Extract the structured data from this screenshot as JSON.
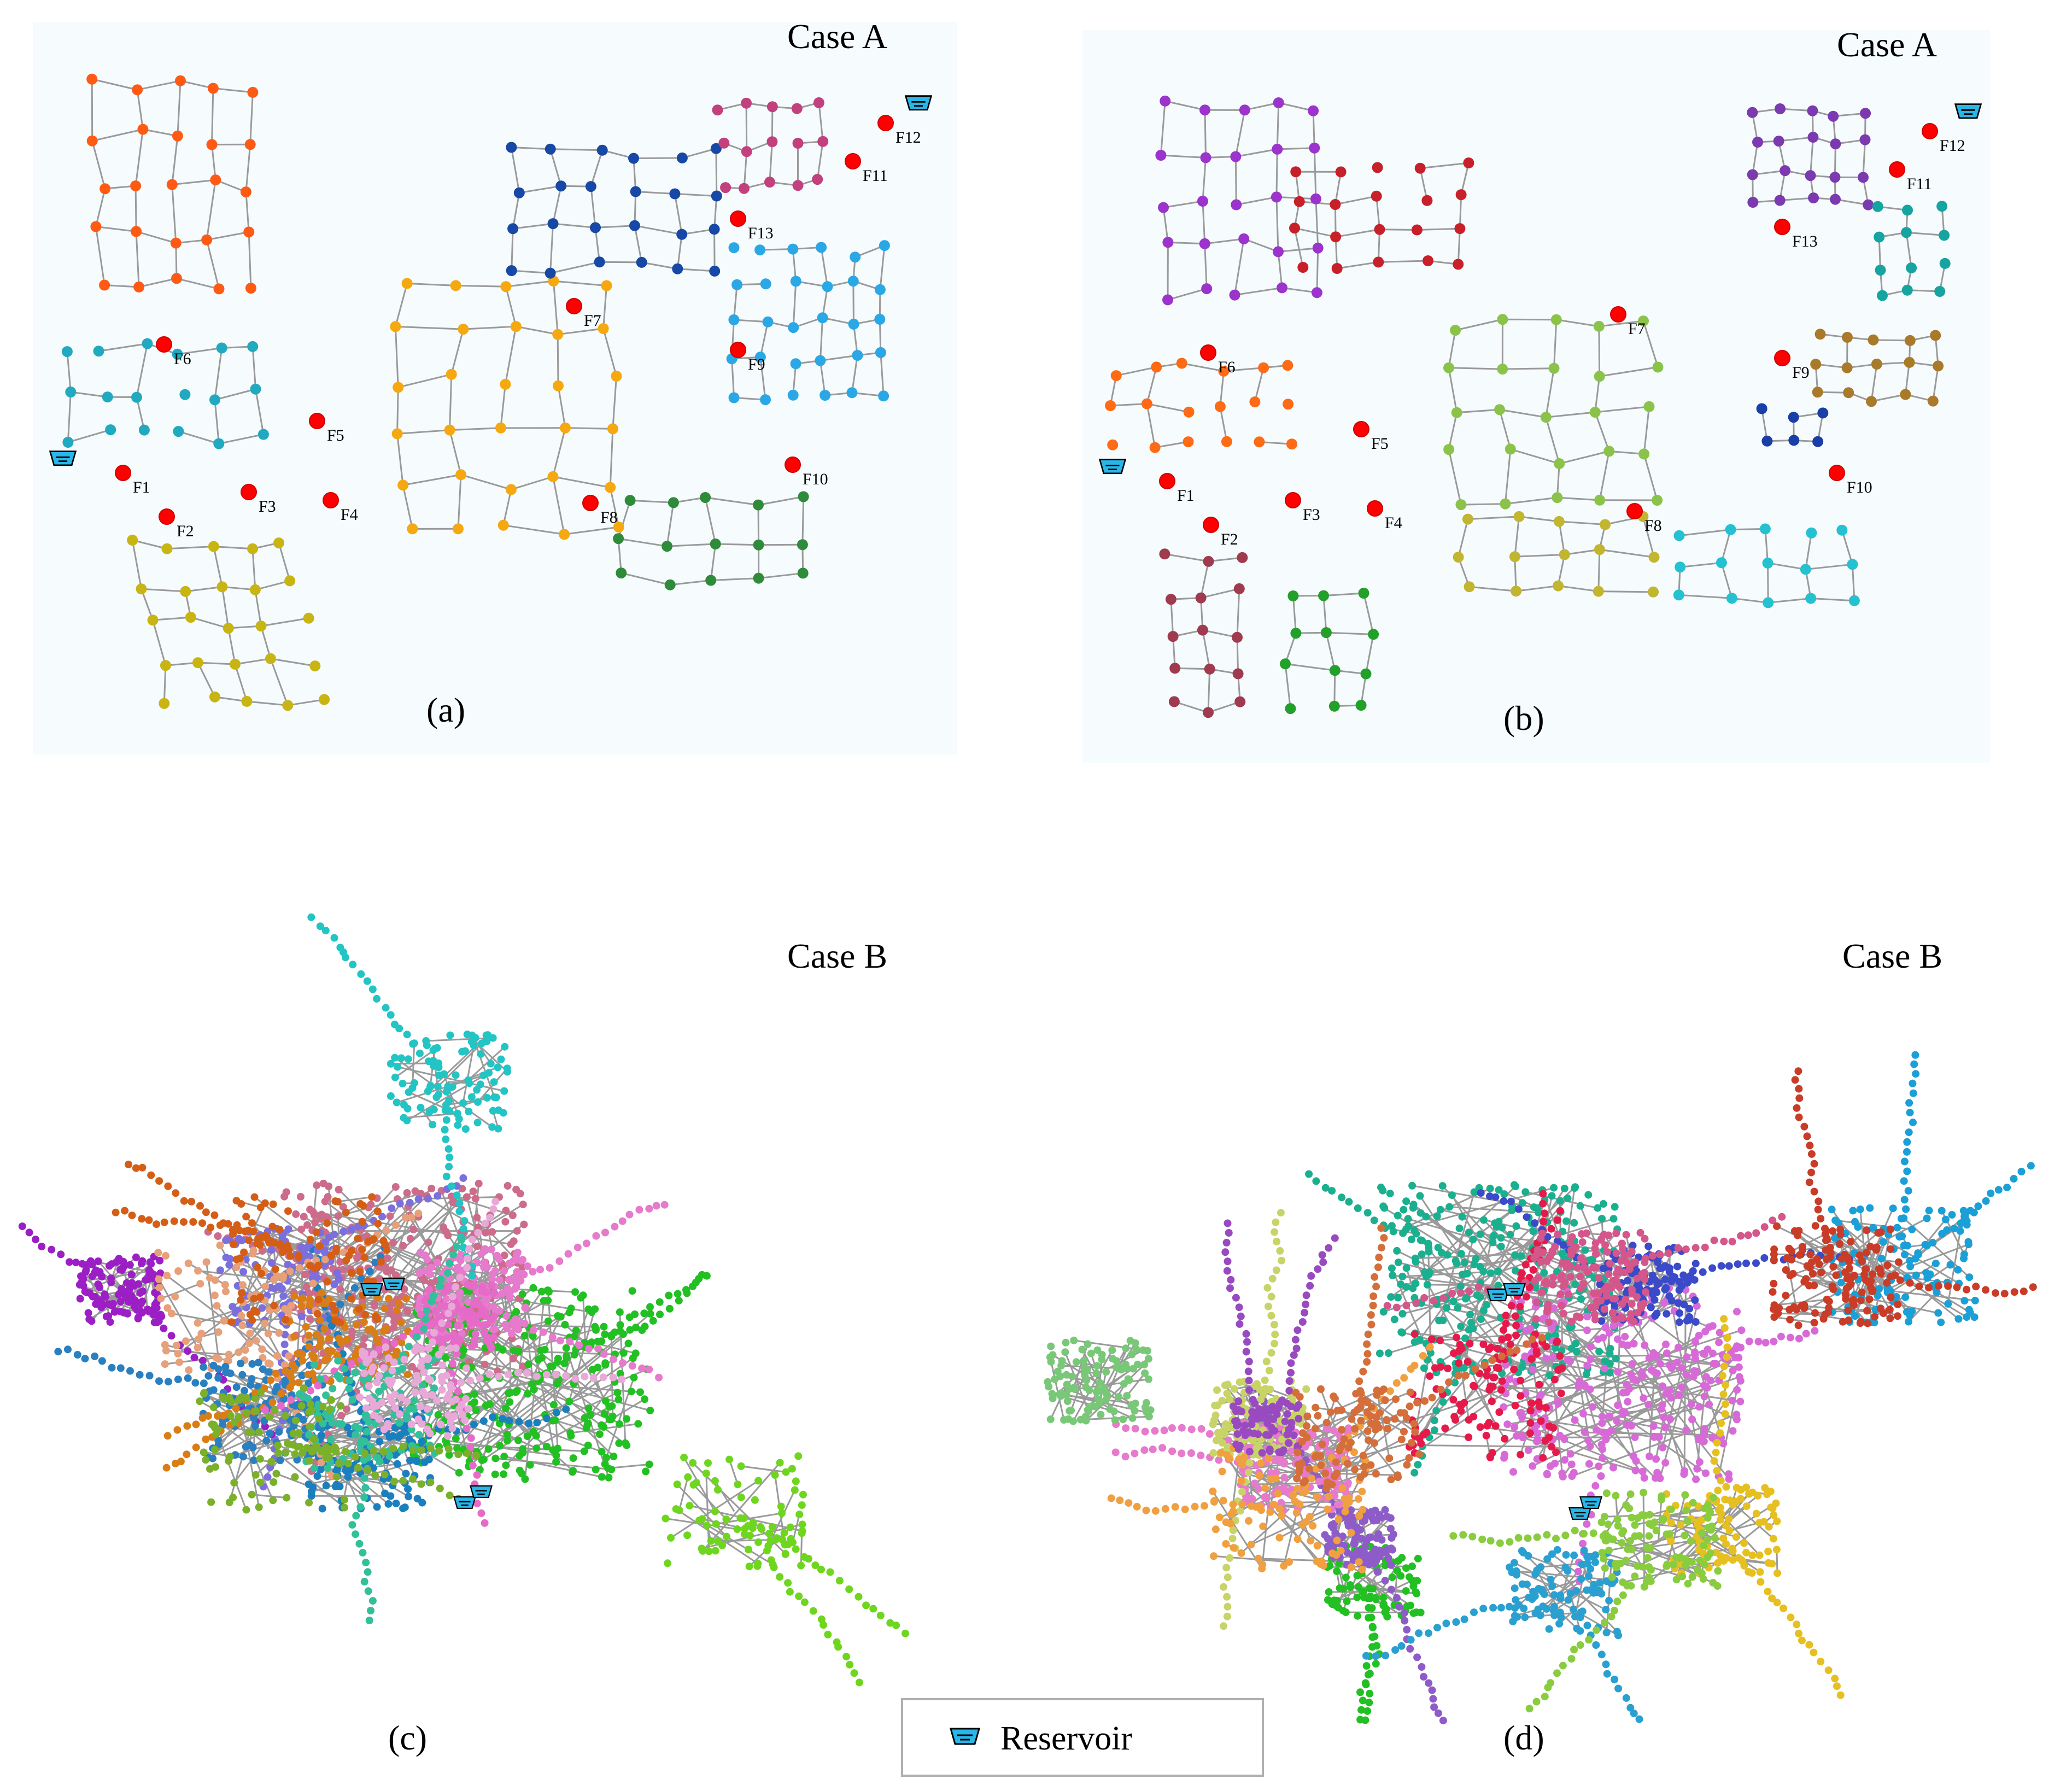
{
  "panels": [
    {
      "id": "a",
      "title": "Case A",
      "label": "(a)"
    },
    {
      "id": "b",
      "title": "Case A",
      "label": "(b)"
    },
    {
      "id": "c",
      "title": "Case B",
      "label": "(c)"
    },
    {
      "id": "d",
      "title": "Case B",
      "label": "(d)"
    }
  ],
  "fault_labels": [
    "F1",
    "F2",
    "F3",
    "F4",
    "F5",
    "F6",
    "F7",
    "F8",
    "F9",
    "F10",
    "F11",
    "F12",
    "F13"
  ],
  "legend": {
    "reservoir_label": "Reservoir"
  },
  "icons": {
    "reservoir": "reservoir-icon",
    "fault": "fault-node-icon"
  },
  "colors": {
    "edge": "#9a9a9a",
    "fault": "#ff0000",
    "reservoir": "#29b6e8",
    "a_clusters": [
      "#ff5a14",
      "#21a9c0",
      "#f5a810",
      "#1748a6",
      "#c2407e",
      "#2aa8e6",
      "#2e8b3a",
      "#c8b514"
    ],
    "b_clusters": [
      "#9c33cc",
      "#ff6a14",
      "#c8202a",
      "#8bc34a",
      "#c2b630",
      "#a03a4f",
      "#22a02a",
      "#24c1d1",
      "#7b3ab0",
      "#a87a2a",
      "#1a3ea8",
      "#16a4a0"
    ],
    "c_clusters": [
      "#cc6b8a",
      "#22c022",
      "#e67acc",
      "#1a7fbf",
      "#7a6fdc",
      "#23c4c4",
      "#9b1fc4",
      "#6fd61f",
      "#e6a07a",
      "#2a7fc0",
      "#d97e16",
      "#e66ac8",
      "#32c09a",
      "#e8a8d8",
      "#d45e16",
      "#7ab02a"
    ],
    "d_clusters": [
      "#1ab08f",
      "#d86ad8",
      "#22c022",
      "#e6194b",
      "#8e5cc8",
      "#1a9fd6",
      "#e67acc",
      "#c8d468",
      "#f0a040",
      "#3a4ac8",
      "#d4568a",
      "#78c878",
      "#e6c020",
      "#2aa0d0",
      "#9a4ac0",
      "#d46e3a",
      "#8acc40",
      "#c83c28"
    ]
  }
}
